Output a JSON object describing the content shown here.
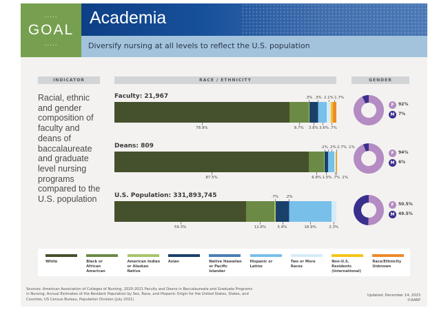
{
  "goal": {
    "label": "GOAL",
    "dots": "....."
  },
  "header": {
    "title": "Academia",
    "subtitle": "Diversify nursing at all levels to reflect the U.S. population"
  },
  "columns": {
    "indicator": "INDICATOR",
    "race": "RACE / ETHNICITY",
    "gender": "GENDER"
  },
  "indicator_text": "Racial, ethnic and gender composition of faculty and deans of baccalaureate and graduate level nursing programs compared to the U.S. population",
  "colors": {
    "White": "#45512c",
    "Black or African American": "#6b8a45",
    "American Indian or Alaskan Native": "#a7c56c",
    "Asian": "#1a416a",
    "Native Hawaiian or Pacific Islander": "#4a7fb5",
    "Hispanic or Latino": "#78bfe9",
    "Two or More Races": "#d6ebf9",
    "Non-U.S. Residents (International)": "#f5c518",
    "Race/Ethnicity Unknown": "#ee8a2a",
    "female": "#b48bc3",
    "male": "#3a2f8c"
  },
  "chart_data": {
    "type": "bar",
    "subtype": "stacked-100-horizontal",
    "categories": [
      "White",
      "Black or African American",
      "American Indian or Alaskan Native",
      "Asian",
      "Native Hawaiian or Pacific Islander",
      "Hispanic or Latino",
      "Two or More Races",
      "Non-U.S. Residents (International)",
      "Race/Ethnicity Unknown"
    ],
    "groups": [
      {
        "title": "Faculty: 21,967",
        "values": [
          78.9,
          8.7,
          0.3,
          3.8,
          0.3,
          3.6,
          2.1,
          0.7,
          1.7
        ],
        "labels": [
          "78.9%",
          "8.7%",
          ".3%",
          "3.8%",
          ".3%",
          "3.6%",
          "2.1%",
          ".7%",
          "1.7%"
        ],
        "label_pos": [
          "below",
          "below",
          "above",
          "below",
          "above",
          "below",
          "above",
          "below",
          "above"
        ],
        "gender": {
          "female": 92,
          "male": 7,
          "female_label": "92%",
          "male_label": "7%"
        }
      },
      {
        "title": "Deans: 809",
        "values": [
          87.5,
          6.8,
          0.2,
          1.5,
          0.2,
          2.7,
          0.7,
          0.1,
          0.1
        ],
        "labels": [
          "87.5%",
          "6.8%",
          ".2%",
          "1.5%",
          ".2%",
          "2.7%",
          ".7%",
          ".1%",
          ".1%"
        ],
        "label_pos": [
          "below",
          "below",
          "above",
          "below",
          "above",
          "above",
          "below",
          "below",
          "above"
        ],
        "gender": {
          "female": 94,
          "male": 6,
          "female_label": "94%",
          "male_label": "6%"
        }
      },
      {
        "title": "U.S. Population: 331,893,745",
        "values": [
          59.3,
          12.6,
          0.7,
          5.9,
          0.2,
          18.9,
          2.3,
          0,
          0
        ],
        "labels": [
          "59.3%",
          "12.6%",
          ".7%",
          "5.9%",
          ".2%",
          "18.9%",
          "2.3%",
          "",
          ""
        ],
        "label_pos": [
          "below",
          "below",
          "above",
          "below",
          "above",
          "below",
          "below",
          "none",
          "none"
        ],
        "gender": {
          "female": 50.5,
          "male": 49.5,
          "female_label": "50.5%",
          "male_label": "49.5%"
        }
      }
    ],
    "gender_letters": {
      "female": "F",
      "male": "M"
    },
    "legend": [
      "White",
      "Black or\nAfrican American",
      "American Indian\nor Alaskan Native",
      "Asian",
      "Native Hawaiian\nor Pacific Islander",
      "Hispanic or\nLatino",
      "Two or More\nRaces",
      "Non-U.S. Residents\n(International)",
      "Race/Ethnicity\nUnknown"
    ],
    "xlim": [
      0,
      100
    ]
  },
  "footer": {
    "sources": "Sources: American Association of Colleges of Nursing, 2020-2021 Faculty and Deans in Baccalaureate and Graduate Programs in Nursing; Annual Estimates of the Resident Population by Sex, Race, and Hispanic Origin for the United States, States, and Counties, US Census Bureau, Population Division (July 2021)",
    "updated": "Updated: December 14, 2023",
    "copyright": "©AARP"
  }
}
